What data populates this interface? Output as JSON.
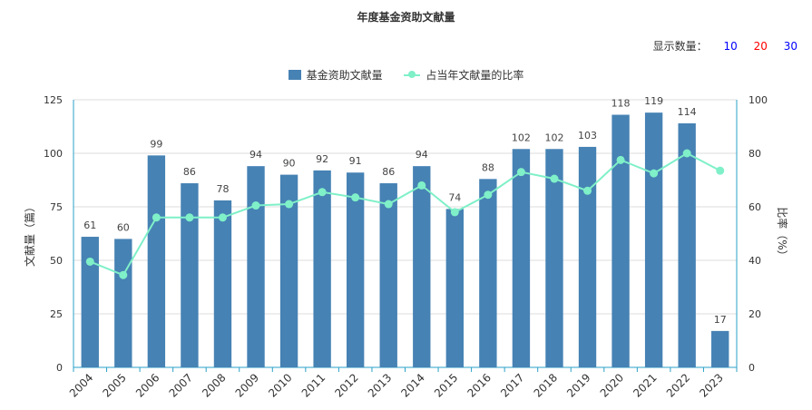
{
  "chart_data": {
    "type": "bar",
    "title": "年度基金资助文献量",
    "categories": [
      "2004",
      "2005",
      "2006",
      "2007",
      "2008",
      "2009",
      "2010",
      "2011",
      "2012",
      "2013",
      "2014",
      "2015",
      "2016",
      "2017",
      "2018",
      "2019",
      "2020",
      "2021",
      "2022",
      "2023"
    ],
    "series": [
      {
        "name": "基金资助文献量",
        "type": "bar",
        "axis": "left",
        "color": "#4682b4",
        "values": [
          61,
          60,
          99,
          86,
          78,
          94,
          90,
          92,
          91,
          86,
          94,
          74,
          88,
          102,
          102,
          103,
          118,
          119,
          114,
          17
        ]
      },
      {
        "name": "占当年文献量的比率",
        "type": "line",
        "axis": "right",
        "color": "#7ff0c8",
        "values": [
          39.5,
          34.5,
          56,
          56,
          56,
          60.5,
          61,
          65.5,
          63.5,
          61,
          68,
          58,
          64.5,
          73,
          70.5,
          66,
          77.5,
          72.5,
          80,
          73.5
        ]
      }
    ],
    "ylabel_left": "文献量（篇）",
    "ylabel_right": "比率（%）",
    "ylim_left": [
      0,
      125
    ],
    "ylim_right": [
      0,
      100
    ],
    "yticks_left": [
      0,
      25,
      50,
      75,
      100,
      125
    ],
    "yticks_right": [
      0,
      20,
      40,
      60,
      80,
      100
    ],
    "grid": true,
    "legend_position": "top-center"
  },
  "display_count": {
    "label": "显示数量：",
    "options": [
      {
        "label": "10",
        "color": "#0000ff"
      },
      {
        "label": "20",
        "color": "#ff0000"
      },
      {
        "label": "30",
        "color": "#0000ff"
      }
    ]
  }
}
